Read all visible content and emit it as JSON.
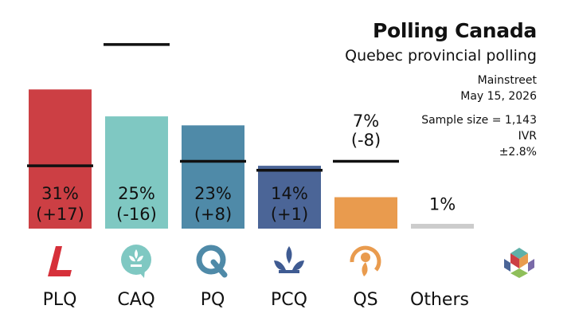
{
  "header": {
    "title": "Polling Canada",
    "subtitle": "Quebec provincial polling",
    "pollster": "Mainstreet",
    "date": "May 15, 2026",
    "sample": "Sample size = 1,143",
    "method": "IVR",
    "margin": "±2.8%"
  },
  "chart_data": {
    "type": "bar",
    "categories": [
      "PLQ",
      "CAQ",
      "PQ",
      "PCQ",
      "QS",
      "Others"
    ],
    "values": [
      31,
      25,
      23,
      14,
      7,
      1
    ],
    "changes": [
      "+17",
      "-16",
      "+8",
      "+1",
      "-8",
      null
    ],
    "previous": [
      14,
      41,
      15,
      13,
      15,
      null
    ],
    "value_labels": [
      "31%",
      "25%",
      "23%",
      "14%",
      "7%",
      "1%"
    ],
    "change_labels": [
      "(+17)",
      "(-16)",
      "(+8)",
      "(+1)",
      "(-8)",
      ""
    ],
    "colors": [
      "#cc3f44",
      "#7fc8c2",
      "#4f8aa8",
      "#4b6597",
      "#e99b4e",
      "#cccccc"
    ],
    "ylim": [
      0,
      44
    ],
    "grid": false,
    "legend": "none"
  },
  "logos": [
    {
      "party": "PLQ",
      "icon": "plq-logo-icon"
    },
    {
      "party": "CAQ",
      "icon": "caq-logo-icon"
    },
    {
      "party": "PQ",
      "icon": "pq-logo-icon"
    },
    {
      "party": "PCQ",
      "icon": "pcq-logo-icon"
    },
    {
      "party": "QS",
      "icon": "qs-logo-icon"
    },
    {
      "party": "Others",
      "icon": "polling-canada-logo-icon"
    }
  ]
}
